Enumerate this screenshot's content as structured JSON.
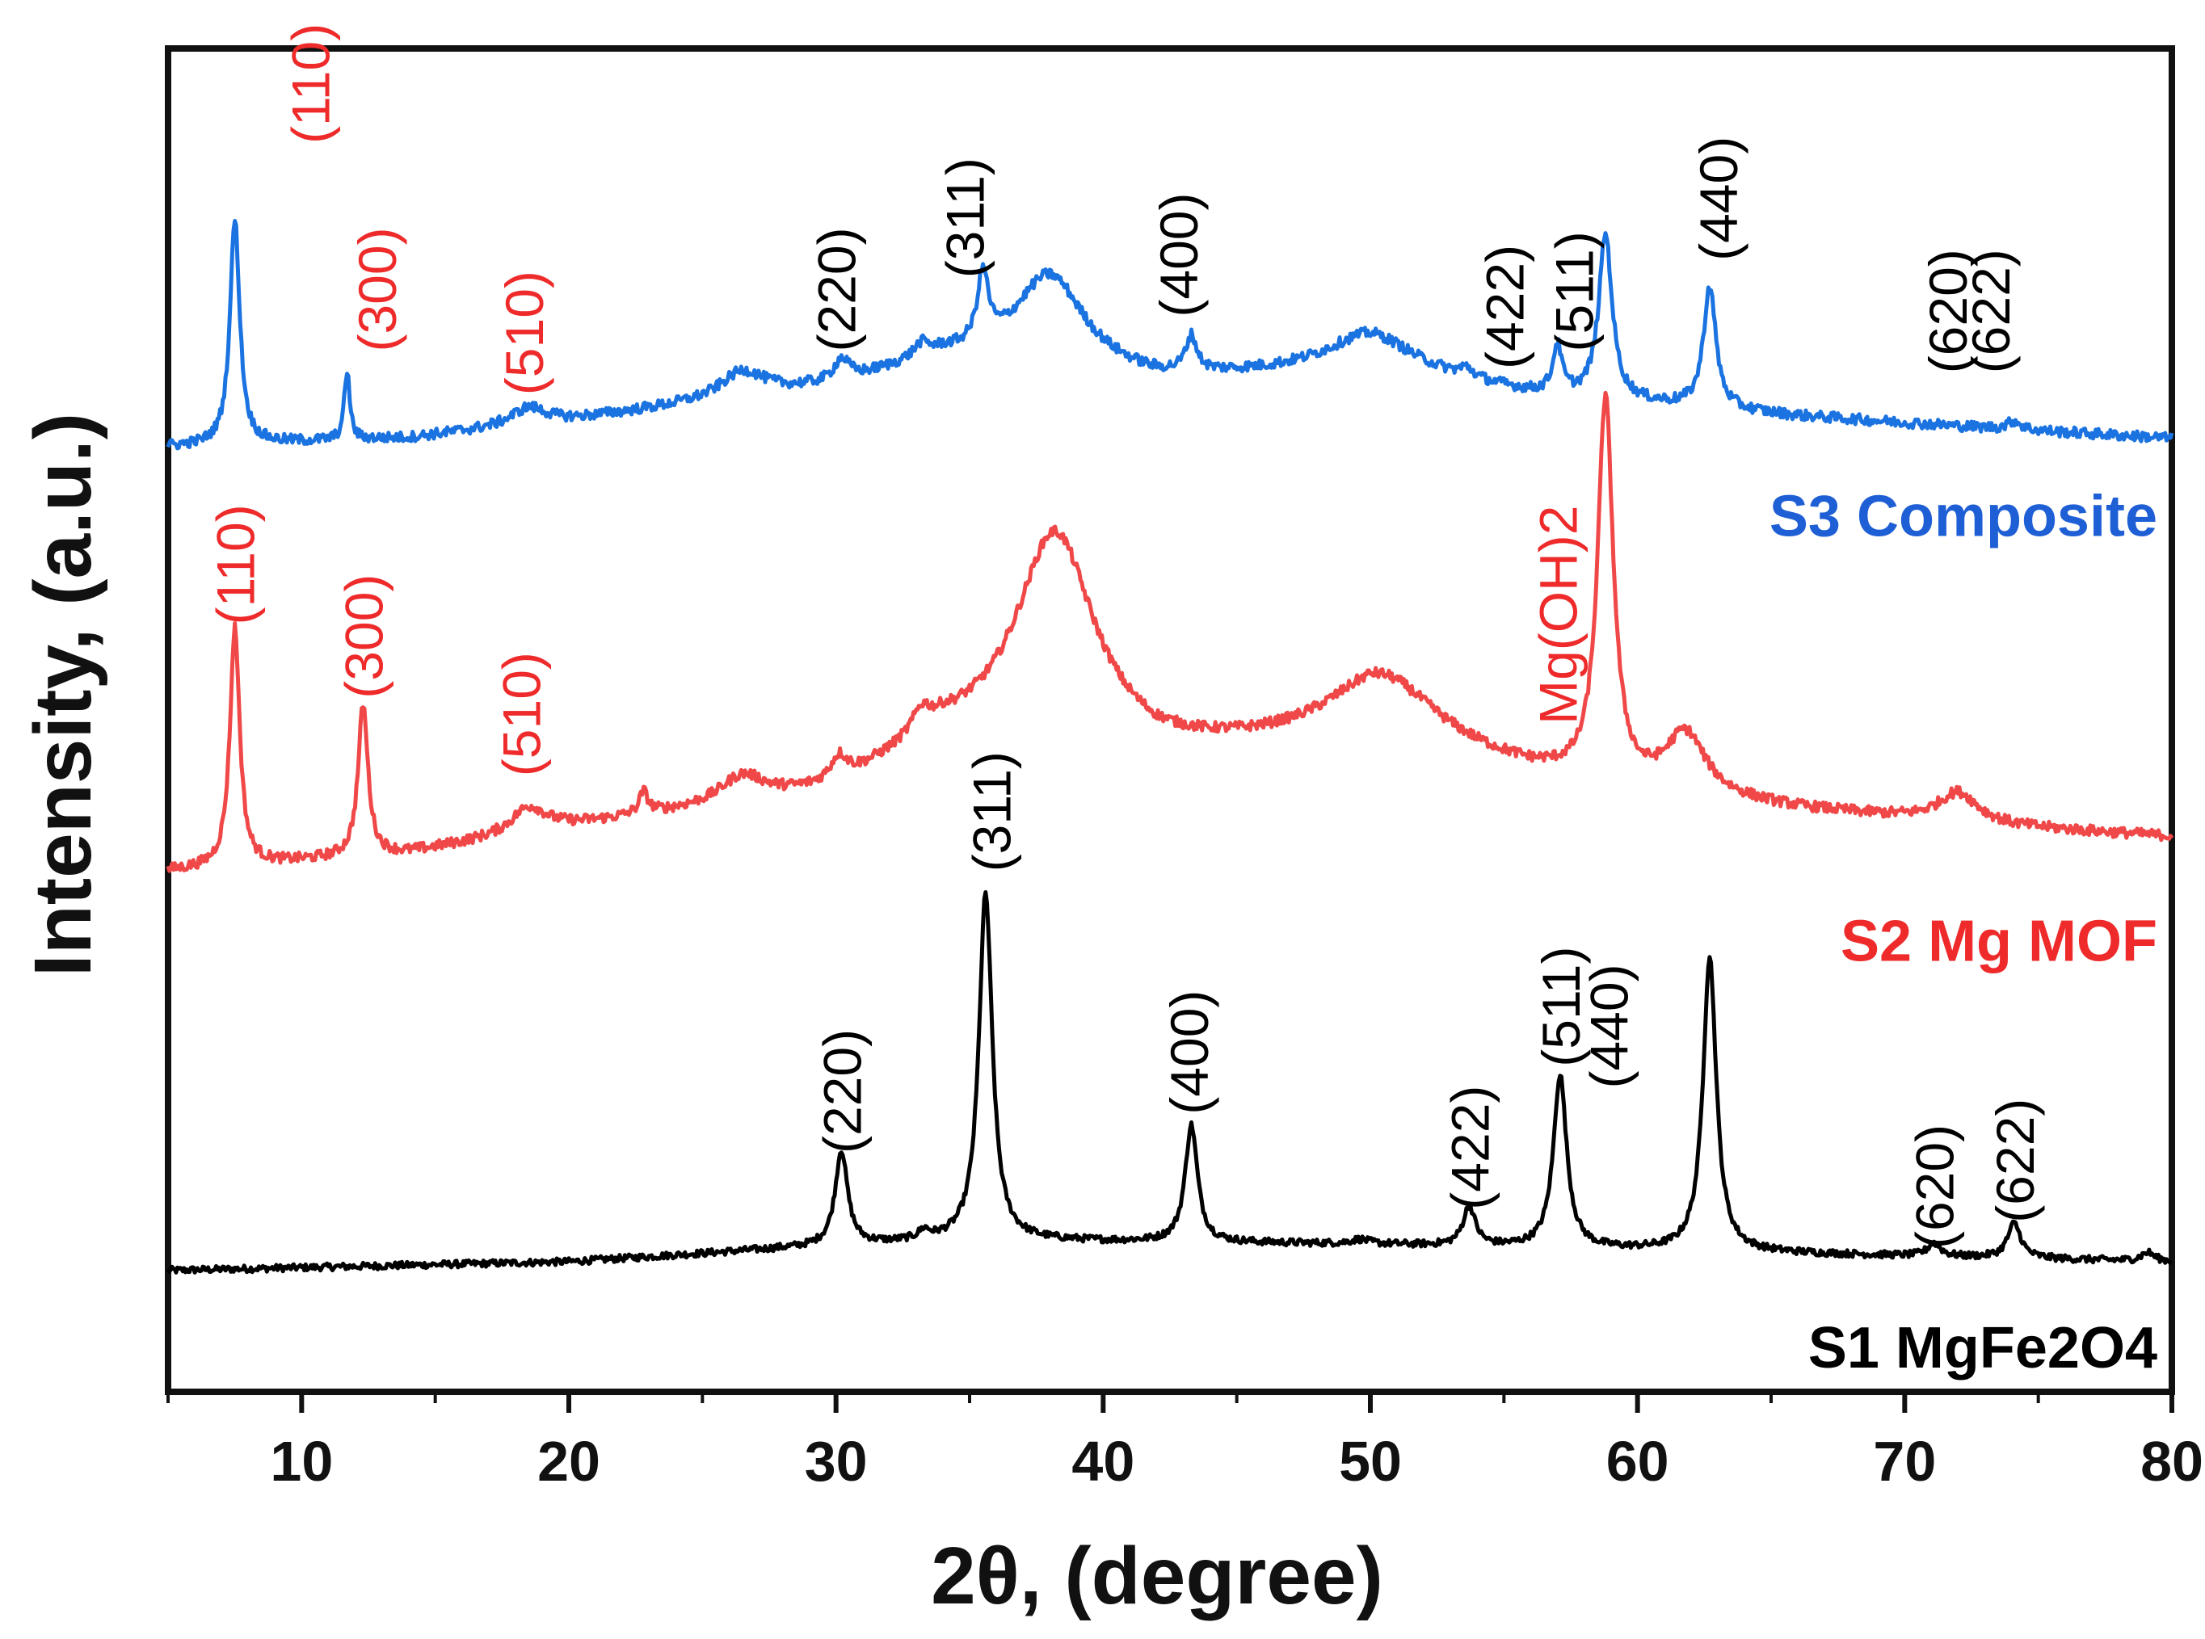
{
  "chart_data": {
    "type": "line",
    "title": "",
    "xlabel": "2θ, (degree)",
    "ylabel": "Intensity, (a.u.)",
    "xlim": [
      5,
      80
    ],
    "ylim": [
      0,
      3.1
    ],
    "xticks": [
      10,
      20,
      30,
      40,
      50,
      60,
      70,
      80
    ],
    "yticks": [],
    "grid": false,
    "legend": "labels beside traces (right)",
    "series": [
      {
        "name": "S1 MgFe2O4",
        "label": "S1 MgFe2O4",
        "color": "#000000",
        "label_color": "#000000",
        "baseline": 0.28,
        "background": [
          [
            5,
            0.28
          ],
          [
            20,
            0.3
          ],
          [
            28,
            0.33
          ],
          [
            35,
            0.35
          ],
          [
            50,
            0.34
          ],
          [
            65,
            0.32
          ],
          [
            80,
            0.3
          ]
        ],
        "noise": 0.008,
        "peaks": [
          {
            "x": 30.2,
            "h": 0.22,
            "w": 0.28
          },
          {
            "x": 33.3,
            "h": 0.02,
            "w": 0.25
          },
          {
            "x": 35.6,
            "h": 0.8,
            "w": 0.3
          },
          {
            "x": 43.3,
            "h": 0.27,
            "w": 0.28
          },
          {
            "x": 49.6,
            "h": 0.01,
            "w": 0.4
          },
          {
            "x": 53.7,
            "h": 0.09,
            "w": 0.28
          },
          {
            "x": 57.1,
            "h": 0.4,
            "w": 0.3
          },
          {
            "x": 62.7,
            "h": 0.68,
            "w": 0.3
          },
          {
            "x": 71.1,
            "h": 0.03,
            "w": 0.3
          },
          {
            "x": 74.1,
            "h": 0.08,
            "w": 0.3
          },
          {
            "x": 79.1,
            "h": 0.02,
            "w": 0.3
          }
        ]
      },
      {
        "name": "S2 Mg MOF",
        "label": "S2 Mg MOF",
        "color": "#f04848",
        "label_color": "#ee2a2a",
        "baseline": 1.2,
        "background": [
          [
            5,
            1.2
          ],
          [
            14,
            1.24
          ],
          [
            20,
            1.3
          ],
          [
            30,
            1.38
          ],
          [
            34,
            1.5
          ],
          [
            42,
            1.46
          ],
          [
            50,
            1.5
          ],
          [
            56,
            1.42
          ],
          [
            60,
            1.38
          ],
          [
            66,
            1.34
          ],
          [
            74,
            1.3
          ],
          [
            80,
            1.28
          ]
        ],
        "noise": 0.012,
        "peaks": [
          {
            "x": 7.5,
            "h": 0.55,
            "w": 0.22
          },
          {
            "x": 12.3,
            "h": 0.35,
            "w": 0.22
          },
          {
            "x": 18.5,
            "h": 0.06,
            "w": 0.8
          },
          {
            "x": 22.8,
            "h": 0.05,
            "w": 0.2
          },
          {
            "x": 26.5,
            "h": 0.06,
            "w": 1.0
          },
          {
            "x": 30.1,
            "h": 0.06,
            "w": 0.4
          },
          {
            "x": 33.2,
            "h": 0.05,
            "w": 0.4
          },
          {
            "x": 38.2,
            "h": 0.5,
            "w": 1.8
          },
          {
            "x": 50.5,
            "h": 0.15,
            "w": 2.5
          },
          {
            "x": 58.8,
            "h": 0.88,
            "w": 0.35
          },
          {
            "x": 61.8,
            "h": 0.14,
            "w": 0.9
          },
          {
            "x": 72.0,
            "h": 0.07,
            "w": 0.9
          }
        ]
      },
      {
        "name": "S3 Composite",
        "label": "S3 Composite",
        "color": "#1a73e0",
        "label_color": "#1f5fd6",
        "baseline": 2.18,
        "background": [
          [
            5,
            2.18
          ],
          [
            14,
            2.2
          ],
          [
            20,
            2.24
          ],
          [
            30,
            2.32
          ],
          [
            34,
            2.38
          ],
          [
            42,
            2.33
          ],
          [
            50,
            2.36
          ],
          [
            56,
            2.3
          ],
          [
            60,
            2.28
          ],
          [
            66,
            2.25
          ],
          [
            74,
            2.22
          ],
          [
            80,
            2.2
          ]
        ],
        "noise": 0.012,
        "peaks": [
          {
            "x": 7.5,
            "h": 0.52,
            "w": 0.22
          },
          {
            "x": 11.7,
            "h": 0.16,
            "w": 0.12
          },
          {
            "x": 18.5,
            "h": 0.04,
            "w": 0.8
          },
          {
            "x": 26.5,
            "h": 0.06,
            "w": 1.0
          },
          {
            "x": 30.2,
            "h": 0.05,
            "w": 0.35
          },
          {
            "x": 33.2,
            "h": 0.03,
            "w": 0.35
          },
          {
            "x": 35.5,
            "h": 0.16,
            "w": 0.25
          },
          {
            "x": 38.0,
            "h": 0.22,
            "w": 1.6
          },
          {
            "x": 43.3,
            "h": 0.08,
            "w": 0.25
          },
          {
            "x": 50.0,
            "h": 0.08,
            "w": 2.0
          },
          {
            "x": 53.6,
            "h": 0.02,
            "w": 0.3
          },
          {
            "x": 57.0,
            "h": 0.11,
            "w": 0.2
          },
          {
            "x": 58.8,
            "h": 0.38,
            "w": 0.3
          },
          {
            "x": 62.7,
            "h": 0.28,
            "w": 0.28
          },
          {
            "x": 74.1,
            "h": 0.02,
            "w": 0.3
          }
        ]
      }
    ],
    "annotations": [
      {
        "text": "(220)",
        "series": 0,
        "x": 30.2,
        "y": 0.55,
        "color": "#000000"
      },
      {
        "text": "(311)",
        "series": 0,
        "x": 35.8,
        "y": 1.2,
        "color": "#000000"
      },
      {
        "text": "(400)",
        "series": 0,
        "x": 43.2,
        "y": 0.64,
        "color": "#000000"
      },
      {
        "text": "(422)",
        "series": 0,
        "x": 53.7,
        "y": 0.42,
        "color": "#000000"
      },
      {
        "text": "(511)",
        "series": 0,
        "x": 57.1,
        "y": 0.75,
        "color": "#000000"
      },
      {
        "text": "(440)",
        "series": 0,
        "x": 58.9,
        "y": 0.7,
        "color": "#000000"
      },
      {
        "text": "(620)",
        "series": 0,
        "x": 71.1,
        "y": 0.33,
        "color": "#000000"
      },
      {
        "text": "(622)",
        "series": 0,
        "x": 74.1,
        "y": 0.39,
        "color": "#000000"
      },
      {
        "text": "(110)",
        "series": 1,
        "x": 7.5,
        "y": 1.77,
        "color": "#ee2a2a"
      },
      {
        "text": "(300)",
        "series": 1,
        "x": 12.3,
        "y": 1.6,
        "color": "#ee2a2a"
      },
      {
        "text": "(510)",
        "series": 1,
        "x": 18.2,
        "y": 1.42,
        "color": "#ee2a2a"
      },
      {
        "text": "Mg(OH)2",
        "series": 1,
        "x": 57.0,
        "y": 1.54,
        "color": "#ee2a2a"
      },
      {
        "text": "(110)",
        "series": 2,
        "x": 10.3,
        "y": 2.88,
        "color": "#ee2a2a"
      },
      {
        "text": "(300)",
        "series": 2,
        "x": 12.8,
        "y": 2.4,
        "color": "#ee2a2a"
      },
      {
        "text": "(510)",
        "series": 2,
        "x": 18.3,
        "y": 2.3,
        "color": "#ee2a2a"
      },
      {
        "text": "(220)",
        "series": 2,
        "x": 30.0,
        "y": 2.4,
        "color": "#000000"
      },
      {
        "text": "(311)",
        "series": 2,
        "x": 34.8,
        "y": 2.57,
        "color": "#000000"
      },
      {
        "text": "(400)",
        "series": 2,
        "x": 42.8,
        "y": 2.48,
        "color": "#000000"
      },
      {
        "text": "(422)",
        "series": 2,
        "x": 55.0,
        "y": 2.36,
        "color": "#000000"
      },
      {
        "text": "(511)",
        "series": 2,
        "x": 57.6,
        "y": 2.4,
        "color": "#000000"
      },
      {
        "text": "(440)",
        "series": 2,
        "x": 63.0,
        "y": 2.61,
        "color": "#000000"
      },
      {
        "text": "(620)",
        "series": 2,
        "x": 71.6,
        "y": 2.35,
        "color": "#000000"
      },
      {
        "text": "(622)",
        "series": 2,
        "x": 73.2,
        "y": 2.35,
        "color": "#000000"
      }
    ]
  }
}
